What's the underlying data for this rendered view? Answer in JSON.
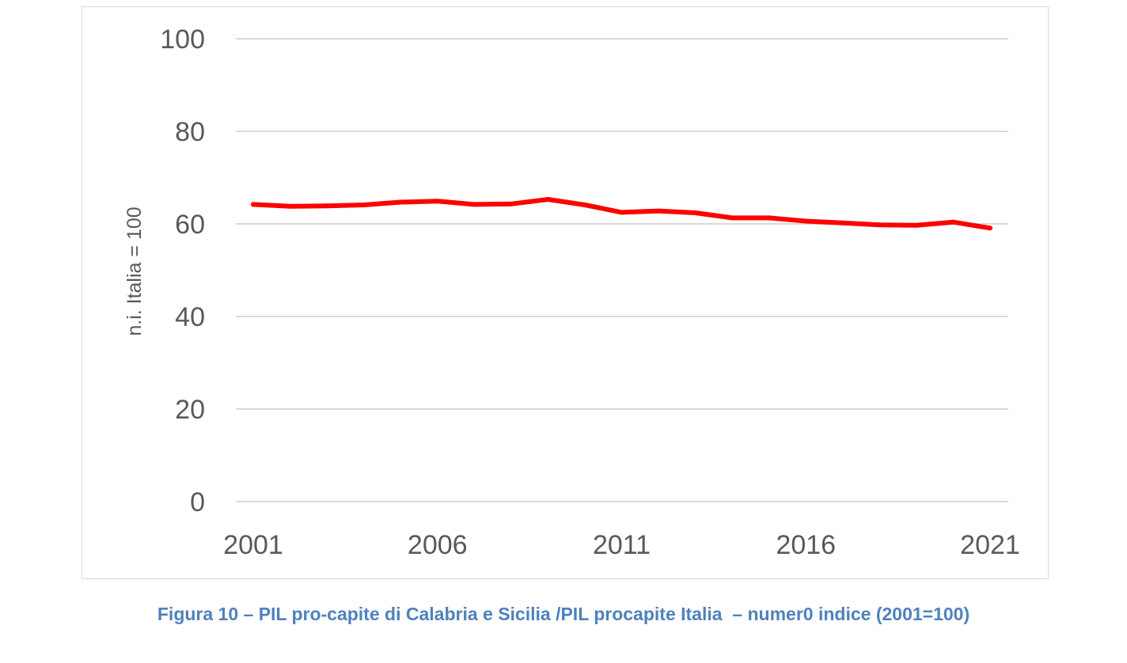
{
  "caption": "Figura 10 – PIL pro-capite di Calabria e Sicilia /PIL procapite Italia  – numer0 indice (2001=100)",
  "colors": {
    "series_line": "#ff0000",
    "gridline": "#d9d9d9",
    "tick_text": "#595959",
    "caption_text": "#4f81bd"
  },
  "chart_data": {
    "type": "line",
    "title": "",
    "xlabel": "",
    "ylabel": "n.i. Italia = 100",
    "x": [
      2001,
      2002,
      2003,
      2004,
      2005,
      2006,
      2007,
      2008,
      2009,
      2010,
      2011,
      2012,
      2013,
      2014,
      2015,
      2016,
      2017,
      2018,
      2019,
      2020,
      2021
    ],
    "series": [
      {
        "name": "",
        "values": [
          64.2,
          63.8,
          63.9,
          64.1,
          64.7,
          64.9,
          64.2,
          64.3,
          65.3,
          64.1,
          62.5,
          62.8,
          62.4,
          61.3,
          61.3,
          60.6,
          60.2,
          59.8,
          59.7,
          60.4,
          59.1
        ]
      }
    ],
    "xticks": [
      "2001",
      "2006",
      "2011",
      "2016",
      "2021"
    ],
    "yticks": [
      "0",
      "20",
      "40",
      "60",
      "80",
      "100"
    ],
    "ylim": [
      0,
      100
    ],
    "xlim": [
      2001,
      2021
    ],
    "grid": "horizontal",
    "legend": "none"
  }
}
